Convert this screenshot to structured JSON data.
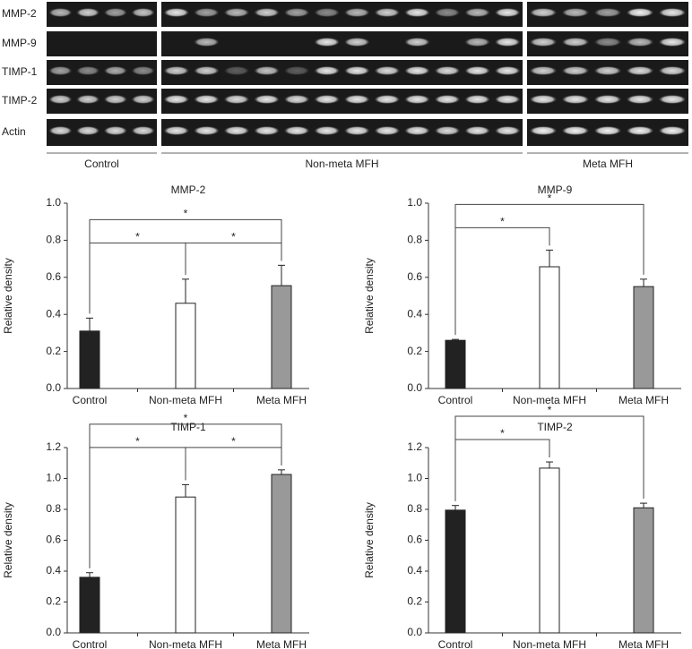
{
  "gel": {
    "rows": [
      "MMP-2",
      "MMP-9",
      "TIMP-1",
      "TIMP-2",
      "Actin"
    ],
    "groups": [
      "Control",
      "Non-meta MFH",
      "Meta MFH"
    ]
  },
  "chart_data": [
    {
      "type": "bar",
      "title": "MMP-2",
      "ylabel": "Relative density",
      "categories": [
        "Control",
        "Non-meta MFH",
        "Meta MFH"
      ],
      "values": [
        0.31,
        0.46,
        0.555
      ],
      "errors": [
        0.07,
        0.13,
        0.11
      ],
      "colors": [
        "#222222",
        "#ffffff",
        "#999999"
      ],
      "ylim": [
        0,
        1.0
      ],
      "yticks": [
        {
          "value": 0,
          "label": "0.0"
        },
        {
          "value": 0.2,
          "label": "0.2"
        },
        {
          "value": 0.4,
          "label": "0.4"
        },
        {
          "value": 0.6,
          "label": "0.6"
        },
        {
          "value": 0.8,
          "label": "0.8"
        },
        {
          "value": 1.0,
          "label": "1.0"
        }
      ],
      "significance": [
        {
          "from": 0,
          "to": 1,
          "label": "*"
        },
        {
          "from": 1,
          "to": 2,
          "label": "*"
        },
        {
          "from": 0,
          "to": 2,
          "label": "*"
        }
      ]
    },
    {
      "type": "bar",
      "title": "MMP-9",
      "ylabel": "Relative density",
      "categories": [
        "Control",
        "Non-meta MFH",
        "Meta MFH"
      ],
      "values": [
        0.26,
        0.657,
        0.55
      ],
      "errors": [
        0.005,
        0.09,
        0.04
      ],
      "colors": [
        "#222222",
        "#ffffff",
        "#999999"
      ],
      "ylim": [
        0,
        1.0
      ],
      "yticks": [
        {
          "value": 0,
          "label": "0.0"
        },
        {
          "value": 0.2,
          "label": "0.2"
        },
        {
          "value": 0.4,
          "label": "0.4"
        },
        {
          "value": 0.6,
          "label": "0.6"
        },
        {
          "value": 0.8,
          "label": "0.8"
        },
        {
          "value": 1.0,
          "label": "1.0"
        }
      ],
      "significance": [
        {
          "from": 0,
          "to": 1,
          "label": "*"
        },
        {
          "from": 0,
          "to": 2,
          "label": "*"
        }
      ]
    },
    {
      "type": "bar",
      "title": "TIMP-1",
      "ylabel": "Relative density",
      "categories": [
        "Control",
        "Non-meta MFH",
        "Meta MFH"
      ],
      "values": [
        0.36,
        0.88,
        1.026
      ],
      "errors": [
        0.03,
        0.08,
        0.03
      ],
      "colors": [
        "#222222",
        "#ffffff",
        "#999999"
      ],
      "ylim": [
        0,
        1.2
      ],
      "yticks": [
        {
          "value": 0,
          "label": "0.0"
        },
        {
          "value": 0.2,
          "label": "0.2"
        },
        {
          "value": 0.4,
          "label": "0.4"
        },
        {
          "value": 0.6,
          "label": "0.6"
        },
        {
          "value": 0.8,
          "label": "0.8"
        },
        {
          "value": 1.0,
          "label": "1.0"
        },
        {
          "value": 1.2,
          "label": "1.2"
        }
      ],
      "significance": [
        {
          "from": 0,
          "to": 1,
          "label": "*"
        },
        {
          "from": 1,
          "to": 2,
          "label": "*"
        },
        {
          "from": 0,
          "to": 2,
          "label": "*"
        }
      ]
    },
    {
      "type": "bar",
      "title": "TIMP-2",
      "ylabel": "Relative density",
      "categories": [
        "Control",
        "Non-meta MFH",
        "Meta MFH"
      ],
      "values": [
        0.795,
        1.067,
        0.81
      ],
      "errors": [
        0.03,
        0.04,
        0.03
      ],
      "colors": [
        "#222222",
        "#ffffff",
        "#999999"
      ],
      "ylim": [
        0,
        1.2
      ],
      "yticks": [
        {
          "value": 0,
          "label": "0.0"
        },
        {
          "value": 0.2,
          "label": "0.2"
        },
        {
          "value": 0.4,
          "label": "0.4"
        },
        {
          "value": 0.6,
          "label": "0.6"
        },
        {
          "value": 0.8,
          "label": "0.8"
        },
        {
          "value": 1.0,
          "label": "1.0"
        },
        {
          "value": 1.2,
          "label": "1.2"
        }
      ],
      "significance": [
        {
          "from": 0,
          "to": 1,
          "label": "*"
        },
        {
          "from": 0,
          "to": 2,
          "label": "*"
        }
      ]
    }
  ]
}
